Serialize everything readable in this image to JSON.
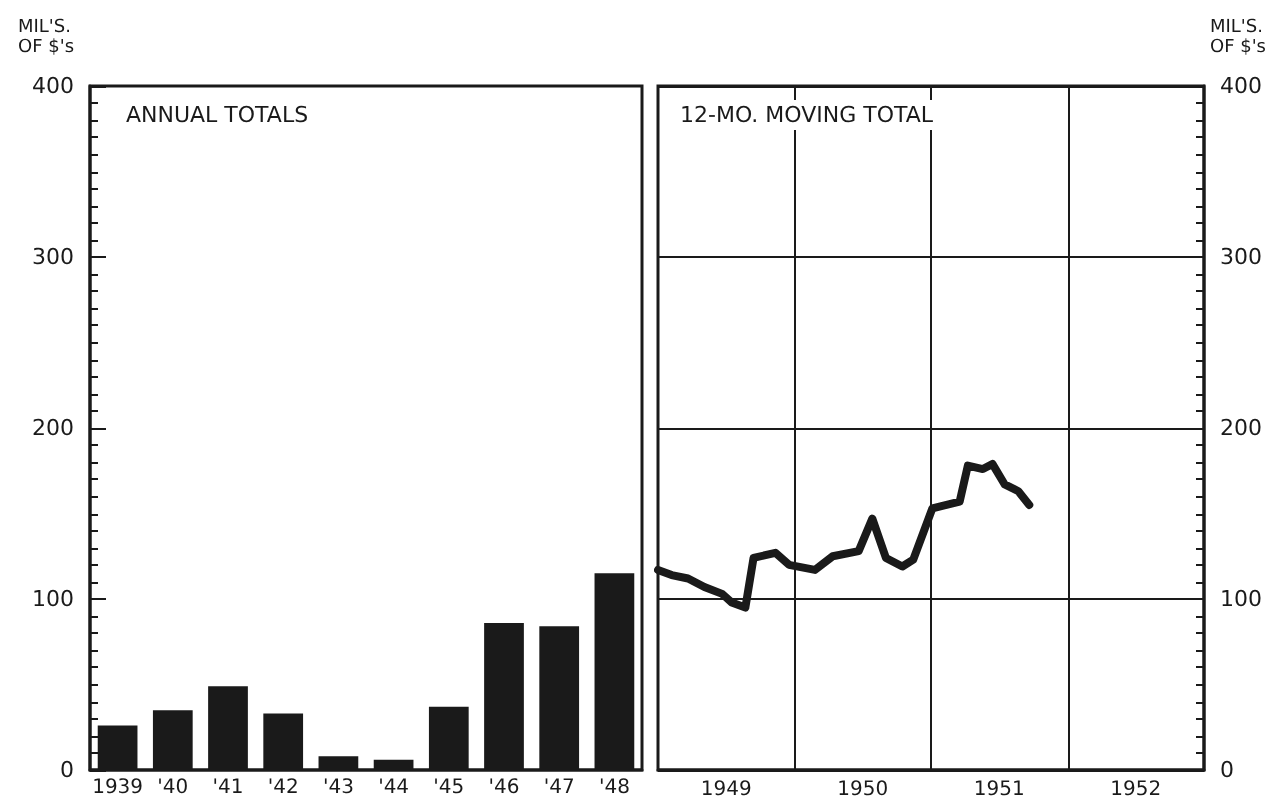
{
  "chart_data": [
    {
      "type": "bar",
      "title": "ANNUAL TOTALS",
      "ylabel": "MIL'S.\nOF $'s",
      "categories": [
        "1939",
        "'40",
        "'41",
        "'42",
        "'43",
        "'44",
        "'45",
        "'46",
        "'47",
        "'48"
      ],
      "values": [
        26,
        35,
        49,
        33,
        8,
        6,
        37,
        86,
        84,
        115
      ],
      "color": "#1a1a1a",
      "ylim": [
        0,
        400
      ],
      "yticks": [
        0,
        100,
        200,
        300,
        400
      ]
    },
    {
      "type": "line",
      "title": "12-MO. MOVING TOTAL",
      "y2label": "MIL'S.\nOF $'s",
      "series": [
        {
          "color": "#1a1a1a",
          "axis": "y2",
          "x": [
            1949.0,
            1949.1,
            1949.22,
            1949.34,
            1949.47,
            1949.54,
            1949.64,
            1949.7,
            1949.86,
            1949.96,
            1950.15,
            1950.28,
            1950.47,
            1950.57,
            1950.67,
            1950.79,
            1950.87,
            1951.01,
            1951.21,
            1951.27,
            1951.38,
            1951.45,
            1951.54,
            1951.64,
            1951.72
          ],
          "values": [
            117,
            114,
            112,
            107,
            103,
            98,
            95,
            124,
            127,
            120,
            117,
            125,
            128,
            147,
            124,
            119,
            123,
            153,
            157,
            178,
            176,
            179,
            167,
            163,
            155
          ]
        }
      ],
      "xlim": [
        1949,
        1953
      ],
      "xticks": [
        {
          "value": 1949.5,
          "label": "1949"
        },
        {
          "value": 1950,
          "label": null
        },
        {
          "value": 1950.5,
          "label": "1950"
        },
        {
          "value": 1951,
          "label": null
        },
        {
          "value": 1951.5,
          "label": "1951"
        },
        {
          "value": 1952,
          "label": null
        },
        {
          "value": 1952.5,
          "label": "1952"
        }
      ],
      "y2lim": [
        0,
        400
      ],
      "y2ticks": [
        0,
        100,
        200,
        300,
        400
      ],
      "grid": true,
      "marker": "none",
      "line_style": "solid"
    }
  ]
}
